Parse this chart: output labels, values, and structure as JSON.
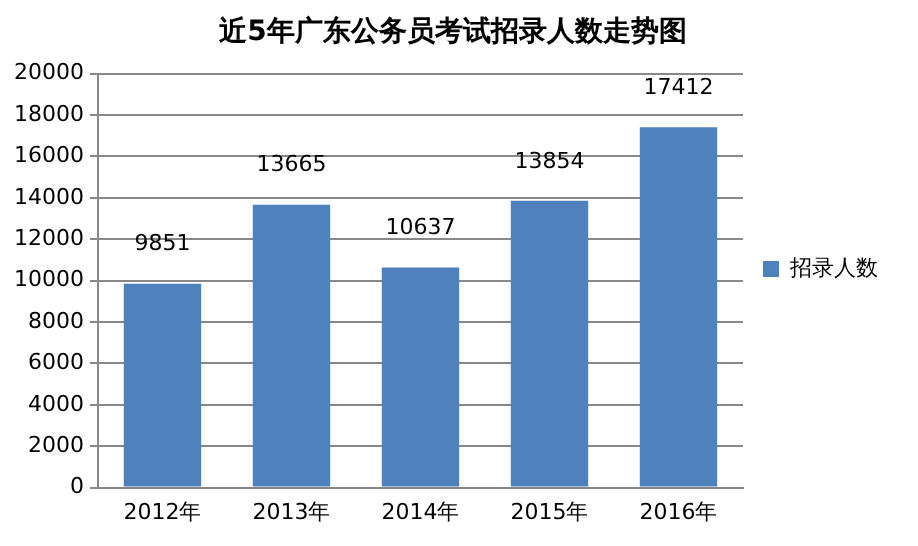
{
  "chart_data": {
    "type": "bar",
    "title": "近5年广东公务员考试招录人数走势图",
    "categories": [
      "2012年",
      "2013年",
      "2014年",
      "2015年",
      "2016年"
    ],
    "series": [
      {
        "name": "招录人数",
        "color": "#4f81bd",
        "values": [
          9851,
          13665,
          10637,
          13854,
          17412
        ]
      }
    ],
    "ylim": [
      0,
      20000
    ],
    "yticks": [
      0,
      2000,
      4000,
      6000,
      8000,
      10000,
      12000,
      14000,
      16000,
      18000,
      20000
    ],
    "grid": "y",
    "legend": "right",
    "data_labels": true
  }
}
